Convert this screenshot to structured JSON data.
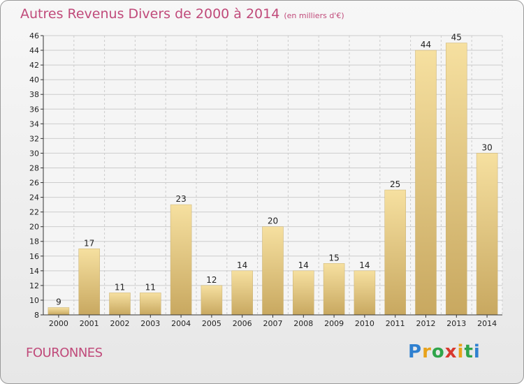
{
  "header": {
    "title": "Autres Revenus Divers de 2000 à 2014",
    "subtitle": "(en milliers d'€)"
  },
  "footer": {
    "place": "FOURONNES",
    "logo": "Proxiti"
  },
  "colors": {
    "bar_light": "#f6e0a0",
    "bar_dark": "#c8a860",
    "title": "#c04a7a",
    "grid": "#cccccc"
  },
  "chart_data": {
    "type": "bar",
    "title": "Autres Revenus Divers de 2000 à 2014",
    "subtitle": "(en milliers d'€)",
    "xlabel": "",
    "ylabel": "",
    "categories": [
      "2000",
      "2001",
      "2002",
      "2003",
      "2004",
      "2005",
      "2006",
      "2007",
      "2008",
      "2009",
      "2010",
      "2011",
      "2012",
      "2013",
      "2014"
    ],
    "values": [
      9,
      17,
      11,
      11,
      23,
      12,
      14,
      20,
      14,
      15,
      14,
      25,
      44,
      45,
      30
    ],
    "ylim": [
      8,
      46
    ],
    "yticks": [
      8,
      10,
      12,
      14,
      16,
      18,
      20,
      22,
      24,
      26,
      28,
      30,
      32,
      34,
      36,
      38,
      40,
      42,
      44,
      46
    ],
    "grid": true,
    "legend": "none"
  }
}
